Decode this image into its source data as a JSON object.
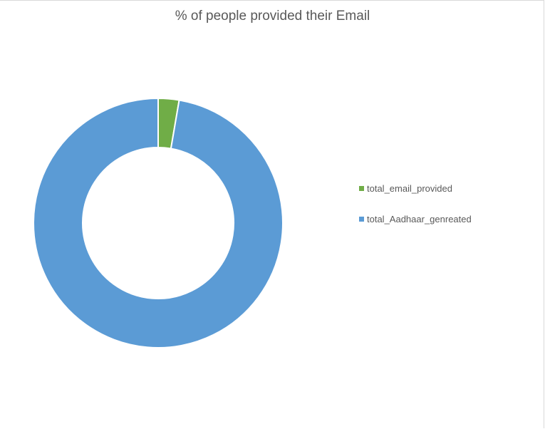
{
  "chart_data": {
    "type": "pie",
    "subtype": "doughnut",
    "title": "% of people provided their Email",
    "series": [
      {
        "name": "total_email_provided",
        "value": 2.7,
        "color": "#70AD47"
      },
      {
        "name": "total_Aadhaar_genreated",
        "value": 97.3,
        "color": "#5B9BD5"
      }
    ],
    "legend_position": "right"
  }
}
